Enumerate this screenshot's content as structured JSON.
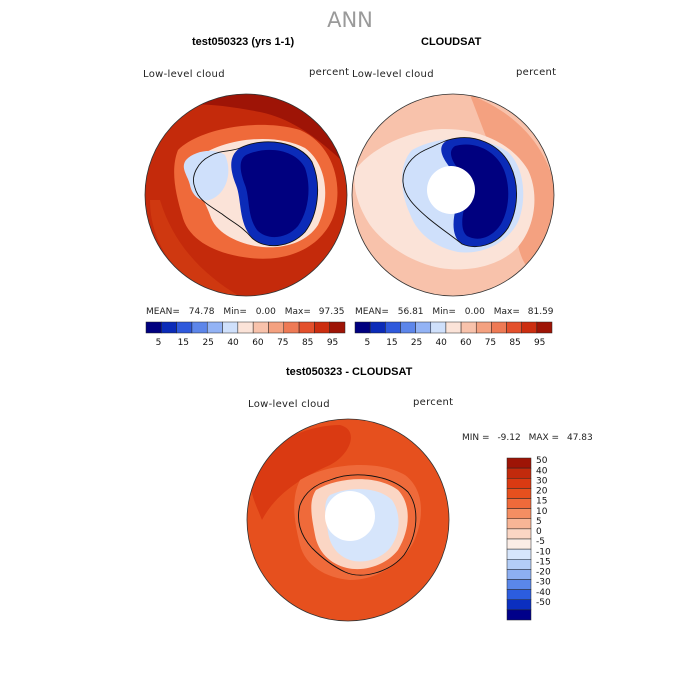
{
  "figure": {
    "title": "ANN",
    "panel1": {
      "title": "test050323 (yrs 1-1)",
      "variable": "Low-level cloud",
      "units": "percent",
      "mean_label": "MEAN=",
      "mean": "74.78",
      "min_label": "Min=",
      "min": "0.00",
      "max_label": "Max=",
      "max": "97.35"
    },
    "panel2": {
      "title": "CLOUDSAT",
      "variable": "Low-level cloud",
      "units": "percent",
      "mean_label": "MEAN=",
      "mean": "56.81",
      "min_label": "Min=",
      "min": "0.00",
      "max_label": "Max=",
      "max": "81.59"
    },
    "panel3": {
      "title": "test050323 - CLOUDSAT",
      "variable": "Low-level cloud",
      "units": "percent",
      "min_label": "MIN =",
      "min": "-9.12",
      "max_label": "MAX =",
      "max": "47.83"
    }
  },
  "chart_data": [
    {
      "type": "heatmap",
      "name": "abs_colorbar",
      "ticks": [
        "5",
        "15",
        "25",
        "40",
        "60",
        "75",
        "85",
        "95"
      ],
      "colors": [
        "#00007f",
        "#0b2bb8",
        "#2f59dc",
        "#5d86ea",
        "#93b3f5",
        "#cfe0fb",
        "#fbe3d8",
        "#f8c2ab",
        "#f4a180",
        "#ee7a55",
        "#e3502c",
        "#cc2e10",
        "#9e1406"
      ]
    },
    {
      "type": "heatmap",
      "name": "diff_colorbar",
      "ticks": [
        "50",
        "40",
        "30",
        "20",
        "15",
        "10",
        "5",
        "0",
        "-5",
        "-10",
        "-15",
        "-20",
        "-30",
        "-40",
        "-50"
      ],
      "colors": [
        "#9e1406",
        "#c22a0c",
        "#da3a12",
        "#e6501e",
        "#ef6a3a",
        "#f58e62",
        "#f8b596",
        "#fbd6c4",
        "#fbede6",
        "#d6e5fb",
        "#b3cdf7",
        "#8daff2",
        "#5a87ea",
        "#2c5ddf",
        "#0b2fc0",
        "#00008a"
      ]
    }
  ]
}
